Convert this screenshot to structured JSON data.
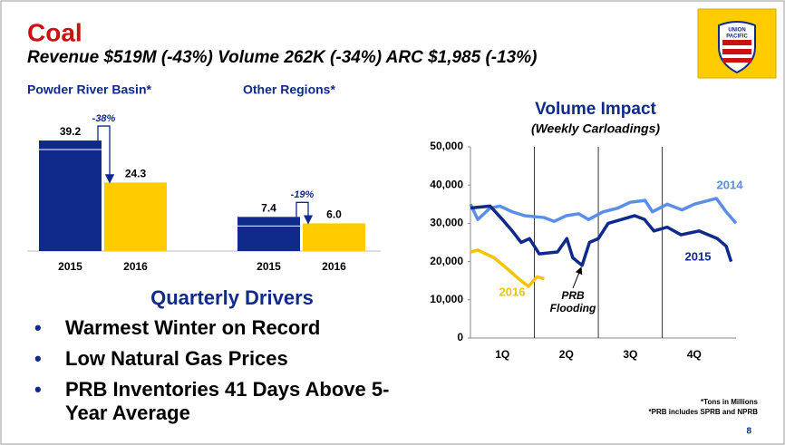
{
  "slide": {
    "title": "Coal",
    "subtitle": "Revenue $519M (-43%) Volume 262K (-34%) ARC $1,985 (-13%)",
    "section_title": "Quarterly Drivers",
    "bullets": [
      "Warmest Winter on Record",
      "Low Natural Gas Prices",
      "PRB Inventories 41 Days Above 5-Year Average"
    ],
    "footnotes": [
      "*Tons in Millions",
      "*PRB includes SPRB and NPRB"
    ],
    "page_number": "8",
    "logo": [
      "UNION",
      "PACIFIC"
    ]
  },
  "chart_data": [
    {
      "type": "bar",
      "title": "Powder River Basin*",
      "categories": [
        "2015",
        "2016"
      ],
      "values": [
        39.2,
        24.3
      ],
      "value_labels": [
        "39.2",
        "24.3"
      ],
      "colors": [
        "#0f2a8a",
        "#ffcc00"
      ],
      "ylim": [
        0,
        45
      ],
      "change_label": "-38%"
    },
    {
      "type": "bar",
      "title": "Other Regions*",
      "categories": [
        "2015",
        "2016"
      ],
      "values": [
        7.4,
        6.0
      ],
      "value_labels": [
        "7.4",
        "6.0"
      ],
      "colors": [
        "#0f2a8a",
        "#ffcc00"
      ],
      "ylim": [
        0,
        27.5
      ],
      "change_label": "-19%"
    },
    {
      "type": "line",
      "title": "Volume Impact",
      "subtitle": "(Weekly Carloadings)",
      "categories": [
        "1Q",
        "2Q",
        "3Q",
        "4Q"
      ],
      "xlim": [
        0,
        54
      ],
      "xticks": [
        0,
        13,
        26,
        39,
        52
      ],
      "ylim": [
        0,
        50000
      ],
      "yticks": [
        0,
        {
          "value": 10000,
          "label": "10,000"
        },
        {
          "value": 20000,
          "label": "20,000"
        },
        {
          "value": 30000,
          "label": "30,000"
        },
        {
          "value": 40000,
          "label": "40,000"
        },
        {
          "value": 50000,
          "label": "50,000"
        }
      ],
      "grid": false,
      "series": [
        {
          "name": "2014",
          "color": "#5b8ee6",
          "x": [
            0,
            1.5,
            4,
            6,
            8.5,
            11,
            15,
            17,
            19.5,
            22,
            24,
            27,
            30,
            32.5,
            35.5,
            37,
            40,
            43,
            45.5,
            50,
            52,
            54
          ],
          "values": [
            35000,
            31000,
            34000,
            34500,
            33000,
            32000,
            31500,
            30500,
            32000,
            32500,
            31000,
            33000,
            34000,
            35500,
            36000,
            33000,
            35000,
            33500,
            35000,
            36500,
            33000,
            30000
          ]
        },
        {
          "name": "2015",
          "color": "#0f2a8a",
          "x": [
            0,
            4,
            6.5,
            8.5,
            10.3,
            12,
            14,
            17.7,
            19.6,
            20.8,
            22.7,
            24.2,
            26,
            28,
            30.7,
            33.4,
            35.4,
            37.3,
            40,
            42.8,
            46.5,
            50.2,
            52,
            53
          ],
          "values": [
            34000,
            34500,
            31000,
            28000,
            25000,
            26000,
            22000,
            22500,
            26000,
            21000,
            19000,
            25000,
            26000,
            30000,
            31000,
            32000,
            31000,
            28000,
            29000,
            27000,
            28000,
            26000,
            24000,
            20000
          ]
        },
        {
          "name": "2016",
          "color": "#f5c400",
          "x": [
            0,
            1.5,
            4.8,
            7.6,
            9.8,
            11.8,
            13.5,
            15
          ],
          "values": [
            22500,
            23000,
            21000,
            18000,
            15500,
            13500,
            16000,
            15500
          ]
        }
      ],
      "annotation": "PRB Flooding"
    }
  ]
}
